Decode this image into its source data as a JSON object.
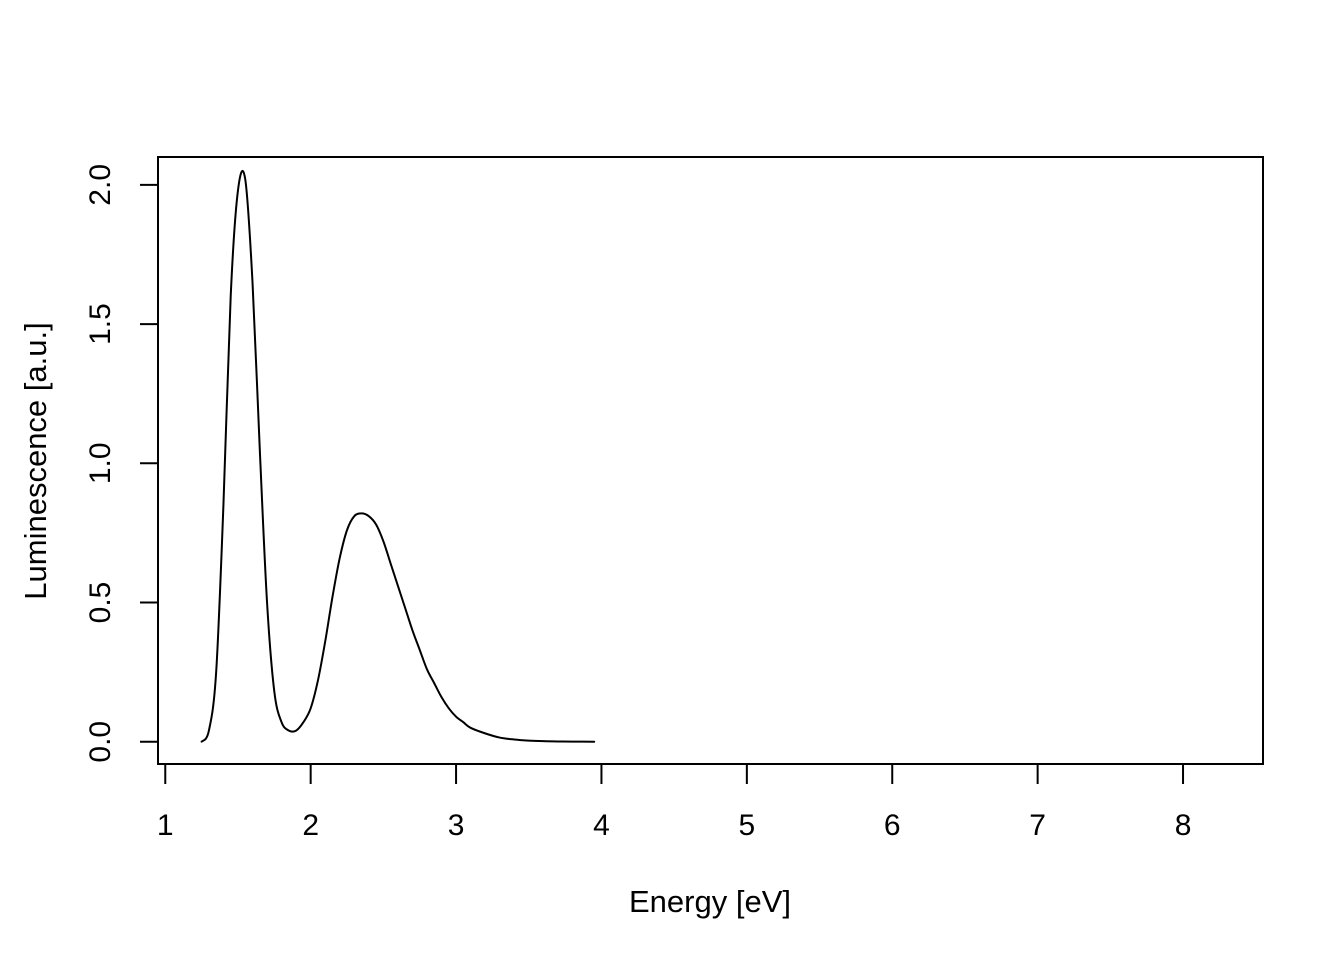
{
  "chart_data": {
    "type": "line",
    "title": "",
    "xlabel": "Energy [eV]",
    "ylabel": "Luminescence [a.u.]",
    "xlim": [
      0.95,
      8.55
    ],
    "ylim": [
      -0.08,
      2.1
    ],
    "x_ticks": [
      1,
      2,
      3,
      4,
      5,
      6,
      7,
      8
    ],
    "x_tick_labels": [
      "1",
      "2",
      "3",
      "4",
      "5",
      "6",
      "7",
      "8"
    ],
    "y_ticks": [
      0.0,
      0.5,
      1.0,
      1.5,
      2.0
    ],
    "y_tick_labels": [
      "0.0",
      "0.5",
      "1.0",
      "1.5",
      "2.0"
    ],
    "grid": false,
    "legend": "none",
    "line_color": "#000000",
    "series": [
      {
        "x": [
          1.25,
          1.3,
          1.35,
          1.4,
          1.45,
          1.5,
          1.55,
          1.6,
          1.65,
          1.7,
          1.75,
          1.8,
          1.85,
          1.9,
          1.95,
          2.0,
          2.05,
          2.1,
          2.15,
          2.2,
          2.25,
          2.3,
          2.35,
          2.4,
          2.45,
          2.5,
          2.55,
          2.6,
          2.65,
          2.7,
          2.75,
          2.8,
          2.85,
          2.9,
          2.95,
          3.0,
          3.05,
          3.1,
          3.2,
          3.3,
          3.4,
          3.5,
          3.6,
          3.7,
          3.8,
          3.95
        ],
        "y": [
          0.0,
          0.04,
          0.25,
          0.85,
          1.6,
          1.98,
          2.02,
          1.65,
          1.05,
          0.5,
          0.18,
          0.07,
          0.04,
          0.04,
          0.07,
          0.12,
          0.22,
          0.36,
          0.52,
          0.66,
          0.76,
          0.81,
          0.82,
          0.81,
          0.78,
          0.72,
          0.64,
          0.56,
          0.48,
          0.4,
          0.33,
          0.26,
          0.21,
          0.16,
          0.12,
          0.09,
          0.07,
          0.05,
          0.03,
          0.015,
          0.008,
          0.004,
          0.002,
          0.001,
          0.0005,
          0.0
        ]
      }
    ]
  }
}
